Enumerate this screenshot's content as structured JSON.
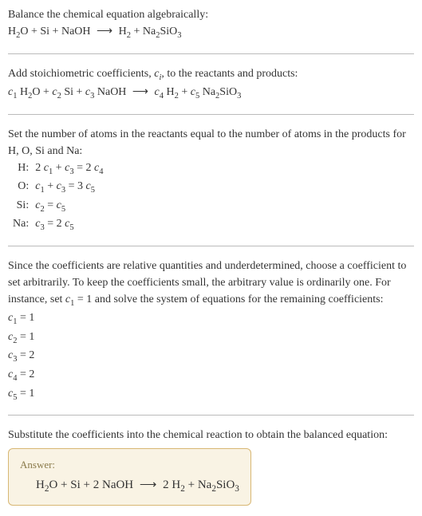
{
  "intro": {
    "line1": "Balance the chemical equation algebraically:",
    "reaction_plain": "H₂O + Si + NaOH ⟶ H₂ + Na₂SiO₃"
  },
  "step1": {
    "text_a": "Add stoichiometric coefficients, ",
    "ci": "c",
    "ci_sub": "i",
    "text_b": ", to the reactants and products:",
    "reaction_coef": "c₁ H₂O + c₂ Si + c₃ NaOH ⟶ c₄ H₂ + c₅ Na₂SiO₃"
  },
  "step2": {
    "text": "Set the number of atoms in the reactants equal to the number of atoms in the products for H, O, Si and Na:",
    "rows": [
      {
        "el": "H:",
        "eq": "2 c₁ + c₃ = 2 c₄"
      },
      {
        "el": "O:",
        "eq": "c₁ + c₃ = 3 c₅"
      },
      {
        "el": "Si:",
        "eq": "c₂ = c₅"
      },
      {
        "el": "Na:",
        "eq": "c₃ = 2 c₅"
      }
    ]
  },
  "step3": {
    "text_a": "Since the coefficients are relative quantities and underdetermined, choose a coefficient to set arbitrarily. To keep the coefficients small, the arbitrary value is ordinarily one. For instance, set ",
    "set": "c₁ = 1",
    "text_b": " and solve the system of equations for the remaining coefficients:",
    "solutions": [
      "c₁ = 1",
      "c₂ = 1",
      "c₃ = 2",
      "c₄ = 2",
      "c₅ = 1"
    ]
  },
  "step4": {
    "text": "Substitute the coefficients into the chemical reaction to obtain the balanced equation:"
  },
  "answer": {
    "label": "Answer:",
    "equation": "H₂O + Si + 2 NaOH ⟶ 2 H₂ + Na₂SiO₃"
  }
}
